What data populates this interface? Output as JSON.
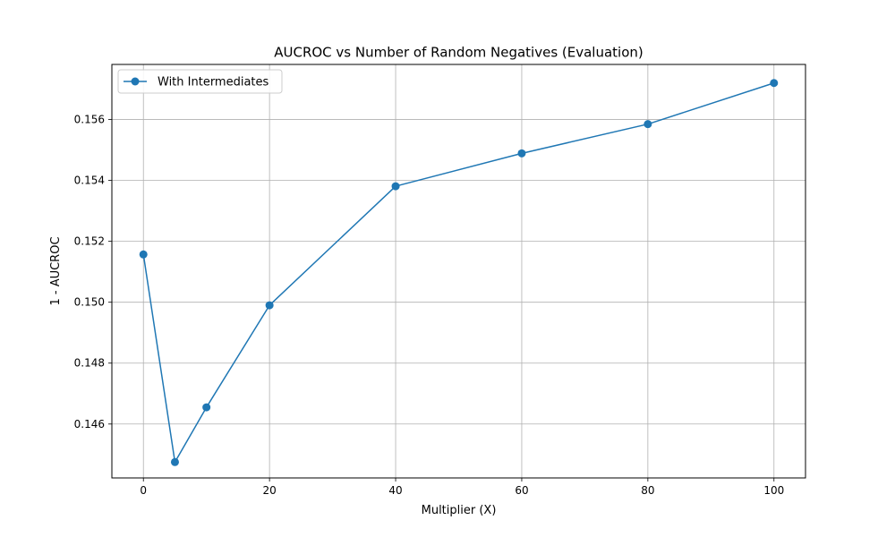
{
  "chart_data": {
    "type": "line",
    "title": "AUCROC vs Number of Random Negatives (Evaluation)",
    "xlabel": "Multiplier (X)",
    "ylabel": "1 - AUCROC",
    "xlim": [
      -5,
      105
    ],
    "ylim": [
      0.14423,
      0.15781
    ],
    "x_ticks": [
      0,
      20,
      40,
      60,
      80,
      100
    ],
    "y_ticks": [
      0.146,
      0.148,
      0.15,
      0.152,
      0.154,
      0.156
    ],
    "y_tick_decimals": 3,
    "grid": true,
    "legend_position": "top-left",
    "series": [
      {
        "name": "With Intermediates",
        "color": "#1f77b4",
        "marker": "circle",
        "x": [
          0,
          5,
          10,
          20,
          40,
          60,
          80,
          100
        ],
        "y": [
          0.15157,
          0.14475,
          0.14655,
          0.1499,
          0.15381,
          0.15489,
          0.15585,
          0.1572
        ]
      }
    ]
  }
}
